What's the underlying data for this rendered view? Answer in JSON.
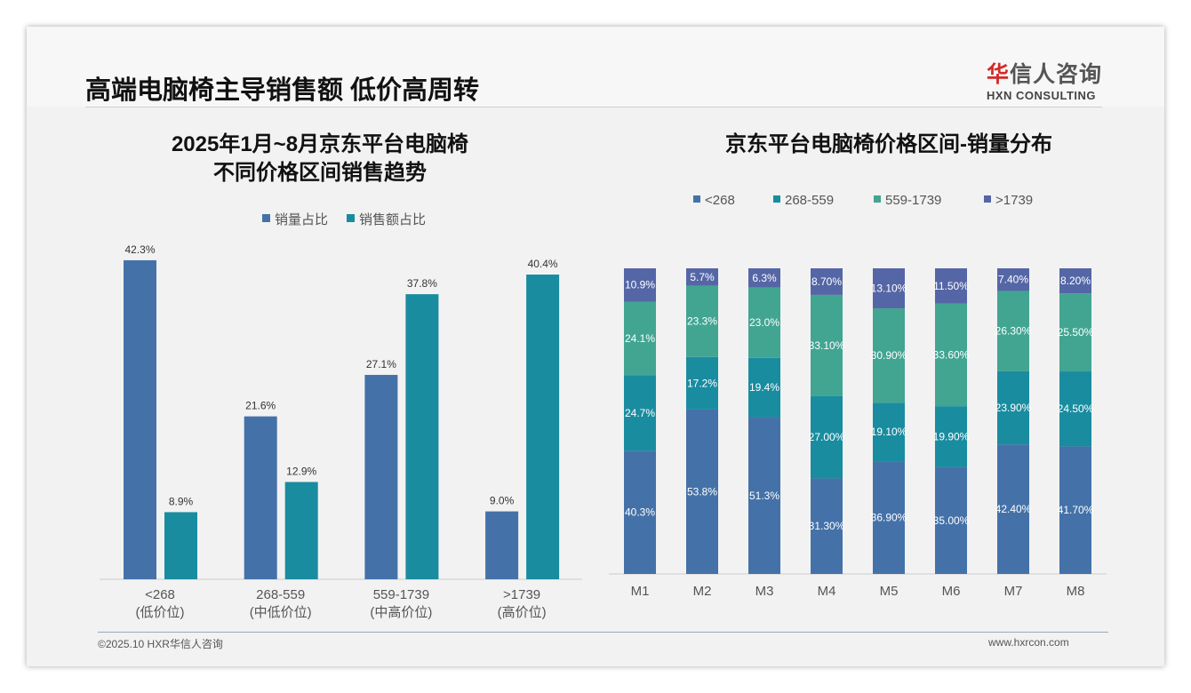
{
  "header": {
    "title": "高端电脑椅主导销售额 低价高周转",
    "logo_cn_accent": "华",
    "logo_cn": "信人咨询",
    "logo_en": "HXN CONSULTING"
  },
  "footer": {
    "copyright": "©2025.10 HXR华信人咨询",
    "url": "www.hxrcon.com"
  },
  "chart_data": [
    {
      "type": "bar",
      "title_line1": "2025年1月~8月京东平台电脑椅",
      "title_line2": "不同价格区间销售趋势",
      "categories": [
        "<268",
        "268-559",
        "559-1739",
        ">1739"
      ],
      "subcategories": [
        "(低价位)",
        "(中低价位)",
        "(中高价位)",
        "(高价位)"
      ],
      "series": [
        {
          "name": "销量占比",
          "color": "#4472a8",
          "values": [
            42.3,
            21.6,
            27.1,
            9.0
          ],
          "labels": [
            "42.3%",
            "21.6%",
            "27.1%",
            "9.0%"
          ]
        },
        {
          "name": "销售额占比",
          "color": "#1a8ca0",
          "values": [
            8.9,
            12.9,
            37.8,
            40.4
          ],
          "labels": [
            "8.9%",
            "12.9%",
            "37.8%",
            "40.4%"
          ]
        }
      ],
      "ylim": [
        0,
        45
      ],
      "legend": "top"
    },
    {
      "type": "bar",
      "stacked": true,
      "title": "京东平台电脑椅价格区间-销量分布",
      "categories": [
        "M1",
        "M2",
        "M3",
        "M4",
        "M5",
        "M6",
        "M7",
        "M8"
      ],
      "series": [
        {
          "name": "<268",
          "color": "#4472a8",
          "values": [
            40.3,
            53.8,
            51.3,
            31.3,
            36.9,
            35.0,
            42.4,
            41.7
          ],
          "labels": [
            "40.3%",
            "53.8%",
            "51.3%",
            "31.30%",
            "36.90%",
            "35.00%",
            "42.40%",
            "41.70%"
          ]
        },
        {
          "name": "268-559",
          "color": "#1a8ca0",
          "values": [
            24.7,
            17.2,
            19.4,
            27.0,
            19.1,
            19.9,
            23.9,
            24.5
          ],
          "labels": [
            "24.7%",
            "17.2%",
            "19.4%",
            "27.00%",
            "19.10%",
            "19.90%",
            "23.90%",
            "24.50%"
          ]
        },
        {
          "name": "559-1739",
          "color": "#41a592",
          "values": [
            24.1,
            23.3,
            23.0,
            33.1,
            30.9,
            33.6,
            26.3,
            25.5
          ],
          "labels": [
            "24.1%",
            "23.3%",
            "23.0%",
            "33.10%",
            "30.90%",
            "33.60%",
            "26.30%",
            "25.50%"
          ]
        },
        {
          "name": ">1739",
          "color": "#5566a6",
          "values": [
            10.9,
            5.7,
            6.3,
            8.7,
            13.1,
            11.5,
            7.4,
            8.2
          ],
          "labels": [
            "10.9%",
            "5.7%",
            "6.3%",
            "8.70%",
            "13.10%",
            "11.50%",
            "7.40%",
            "8.20%"
          ]
        }
      ],
      "ylim": [
        0,
        100
      ],
      "legend": "top"
    }
  ]
}
